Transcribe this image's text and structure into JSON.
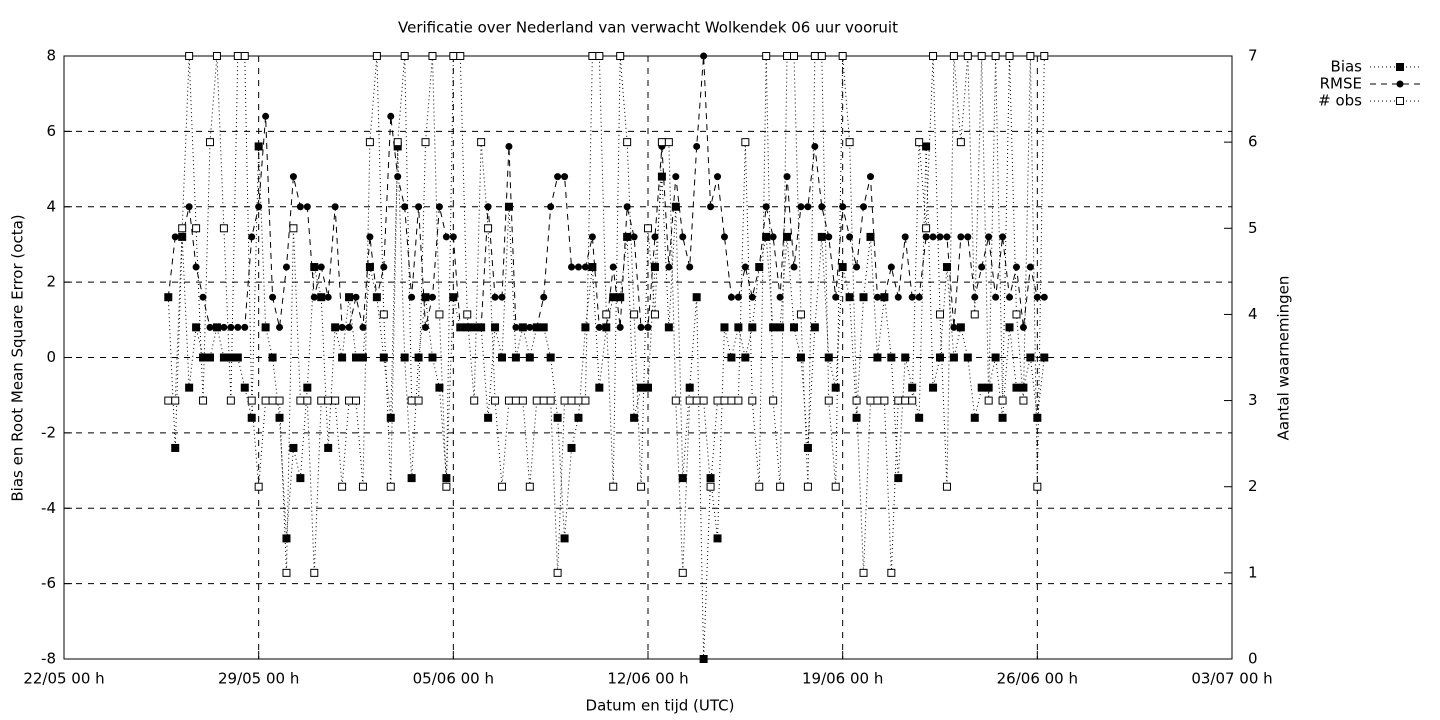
{
  "chart_data": {
    "type": "line",
    "title": "Verificatie over Nederland van verwacht Wolkendek 06 uur vooruit",
    "x_label": "Datum en tijd (UTC)",
    "y_label": "Bias en Root Mean Square Error (octa)",
    "y2_label": "Aantal waarnemingen",
    "xlim": [
      "22/05 00 h",
      "03/07 00 h"
    ],
    "xticks": [
      "22/05 00 h",
      "29/05 00 h",
      "05/06 00 h",
      "12/06 00 h",
      "19/06 00 h",
      "26/06 00 h",
      "03/07 00 h"
    ],
    "ylim": [
      -8,
      8
    ],
    "yticks": [
      -8,
      -6,
      -4,
      -2,
      0,
      2,
      4,
      6,
      8
    ],
    "y2lim": [
      0,
      7
    ],
    "y2ticks": [
      0,
      1,
      2,
      3,
      4,
      5,
      6,
      7
    ],
    "grid": true,
    "legend": "top-right-outside",
    "x": [
      "25/05 18 h",
      "26/05 00 h",
      "26/05 06 h",
      "26/05 12 h",
      "26/05 18 h",
      "27/05 00 h",
      "27/05 06 h",
      "27/05 12 h",
      "27/05 18 h",
      "28/05 00 h",
      "28/05 06 h",
      "28/05 12 h",
      "28/05 18 h",
      "29/05 00 h",
      "29/05 06 h",
      "29/05 12 h",
      "29/05 18 h",
      "30/05 00 h",
      "30/05 06 h",
      "30/05 12 h",
      "30/05 18 h",
      "31/05 00 h",
      "31/05 06 h",
      "31/05 12 h",
      "31/05 18 h",
      "01/06 00 h",
      "01/06 06 h",
      "01/06 12 h",
      "01/06 18 h",
      "02/06 00 h",
      "02/06 06 h",
      "02/06 12 h",
      "02/06 18 h",
      "03/06 00 h",
      "03/06 06 h",
      "03/06 12 h",
      "03/06 18 h",
      "04/06 00 h",
      "04/06 06 h",
      "04/06 12 h",
      "04/06 18 h",
      "05/06 00 h",
      "05/06 06 h",
      "05/06 12 h",
      "05/06 18 h",
      "06/06 00 h",
      "06/06 06 h",
      "06/06 12 h",
      "06/06 18 h",
      "07/06 00 h",
      "07/06 06 h",
      "07/06 12 h",
      "07/06 18 h",
      "08/06 00 h",
      "08/06 06 h",
      "08/06 12 h",
      "08/06 18 h",
      "09/06 00 h",
      "09/06 06 h",
      "09/06 12 h",
      "09/06 18 h",
      "10/06 00 h",
      "10/06 06 h",
      "10/06 12 h",
      "10/06 18 h",
      "11/06 00 h",
      "11/06 06 h",
      "11/06 12 h",
      "11/06 18 h",
      "12/06 00 h",
      "12/06 06 h",
      "12/06 12 h",
      "12/06 18 h",
      "13/06 00 h",
      "13/06 06 h",
      "13/06 12 h",
      "13/06 18 h",
      "14/06 00 h",
      "14/06 06 h",
      "14/06 12 h",
      "14/06 18 h",
      "15/06 00 h",
      "15/06 06 h",
      "15/06 12 h",
      "15/06 18 h",
      "16/06 00 h",
      "16/06 06 h",
      "16/06 12 h",
      "16/06 18 h",
      "17/06 00 h",
      "17/06 06 h",
      "17/06 12 h",
      "17/06 18 h",
      "18/06 00 h",
      "18/06 06 h",
      "18/06 12 h",
      "18/06 18 h",
      "19/06 00 h",
      "19/06 06 h",
      "19/06 12 h",
      "19/06 18 h",
      "20/06 00 h",
      "20/06 06 h",
      "20/06 12 h",
      "20/06 18 h",
      "21/06 00 h",
      "21/06 06 h",
      "21/06 12 h",
      "21/06 18 h",
      "22/06 00 h",
      "22/06 06 h",
      "22/06 12 h",
      "22/06 18 h",
      "23/06 00 h",
      "23/06 06 h",
      "23/06 12 h",
      "23/06 18 h",
      "24/06 00 h",
      "24/06 06 h",
      "24/06 12 h",
      "24/06 18 h",
      "25/06 00 h",
      "25/06 06 h",
      "25/06 12 h",
      "25/06 18 h",
      "26/06 00 h",
      "26/06 06 h"
    ],
    "series": [
      {
        "name": "Bias",
        "color": "#000000",
        "dash": "dotted",
        "marker": "filled-square",
        "axis": "y",
        "values": [
          1.6,
          -2.4,
          3.2,
          -0.8,
          0.8,
          0,
          0,
          0.8,
          0,
          0,
          0,
          -0.8,
          -1.6,
          5.6,
          0.8,
          0,
          -1.6,
          -4.8,
          -2.4,
          -3.2,
          -0.8,
          2.4,
          1.6,
          -2.4,
          0.8,
          0,
          1.6,
          0,
          0,
          2.4,
          1.6,
          0,
          -1.6,
          5.6,
          0,
          -3.2,
          0,
          1.6,
          0,
          -0.8,
          -3.2,
          1.6,
          0.8,
          0.8,
          0.8,
          0.8,
          -1.6,
          0.8,
          0,
          4,
          0,
          0.8,
          0,
          0.8,
          0.8,
          0,
          -1.6,
          -4.8,
          -2.4,
          -1.6,
          0.8,
          2.4,
          -0.8,
          0.8,
          1.6,
          1.6,
          3.2,
          -1.6,
          -0.8,
          -0.8,
          2.4,
          4.8,
          0.8,
          4,
          -3.2,
          -0.8,
          1.6,
          -8,
          -3.2,
          -4.8,
          0.8,
          0,
          0.8,
          0,
          0.8,
          2.4,
          3.2,
          0.8,
          0.8,
          3.2,
          0.8,
          0,
          -2.4,
          0.8,
          3.2,
          0,
          -0.8,
          2.4,
          1.6,
          -1.6,
          1.6,
          3.2,
          0,
          1.6,
          0,
          -3.2,
          0,
          -0.8,
          -1.6,
          5.6,
          -0.8,
          0,
          2.4,
          0,
          0.8,
          0,
          -1.6,
          -0.8,
          -0.8,
          0,
          -1.6,
          0.8,
          -0.8,
          -0.8,
          0,
          -1.6,
          0
        ]
      },
      {
        "name": "RMSE",
        "color": "#000000",
        "dash": "dashed",
        "marker": "filled-circle",
        "axis": "y",
        "values": [
          1.6,
          3.2,
          3.2,
          4,
          2.4,
          1.6,
          0.8,
          0.8,
          0.8,
          0.8,
          0.8,
          0.8,
          3.2,
          4,
          6.4,
          1.6,
          0.8,
          2.4,
          4.8,
          4,
          4,
          1.6,
          2.4,
          1.6,
          4,
          0.8,
          0.8,
          1.6,
          0.8,
          3.2,
          1.6,
          2.4,
          6.4,
          4.8,
          4,
          1.6,
          4,
          0.8,
          1.6,
          4,
          3.2,
          3.2,
          0.8,
          0.8,
          0.8,
          0.8,
          4,
          1.6,
          1.6,
          5.6,
          0.8,
          0.8,
          0.8,
          0.8,
          1.6,
          4,
          4.8,
          4.8,
          2.4,
          2.4,
          2.4,
          3.2,
          0.8,
          0.8,
          2.4,
          0.8,
          4,
          3.2,
          0.8,
          0.8,
          3.2,
          5.6,
          2.4,
          4.8,
          3.2,
          2.4,
          5.6,
          8,
          4,
          4.8,
          3.2,
          1.6,
          1.6,
          2.4,
          1.6,
          2.4,
          4,
          3.2,
          1.6,
          4.8,
          2.4,
          4,
          4,
          5.6,
          4,
          3.2,
          1.6,
          4,
          3.2,
          2.4,
          4,
          4.8,
          1.6,
          1.6,
          2.4,
          1.6,
          3.2,
          1.6,
          1.6,
          3.2,
          3.2,
          3.2,
          3.2,
          0.8,
          3.2,
          3.2,
          1.6,
          2.4,
          3.2,
          1.6,
          3.2,
          1.6,
          2.4,
          0.8,
          2.4,
          1.6,
          1.6
        ]
      },
      {
        "name": "# obs",
        "color": "#000000",
        "dash": "dotted",
        "marker": "open-square",
        "axis": "y2",
        "values": [
          3,
          3,
          5,
          7,
          5,
          3,
          6,
          7,
          5,
          3,
          7,
          7,
          3,
          2,
          3,
          3,
          3,
          1,
          5,
          3,
          3,
          1,
          3,
          3,
          3,
          2,
          3,
          3,
          2,
          6,
          7,
          4,
          2,
          6,
          7,
          3,
          3,
          6,
          7,
          4,
          2,
          7,
          7,
          4,
          3,
          6,
          5,
          3,
          2,
          3,
          3,
          3,
          2,
          3,
          3,
          3,
          1,
          3,
          3,
          3,
          3,
          7,
          7,
          4,
          2,
          7,
          6,
          4,
          2,
          5,
          4,
          6,
          6,
          3,
          1,
          3,
          3,
          3,
          2,
          3,
          3,
          3,
          3,
          6,
          3,
          2,
          7,
          3,
          2,
          7,
          7,
          4,
          2,
          7,
          7,
          3,
          2,
          7,
          6,
          3,
          1,
          3,
          3,
          3,
          1,
          3,
          3,
          3,
          6,
          5,
          7,
          4,
          2,
          7,
          6,
          7,
          4,
          7,
          3,
          7,
          3,
          7,
          4,
          3,
          7,
          2,
          7
        ]
      }
    ]
  }
}
